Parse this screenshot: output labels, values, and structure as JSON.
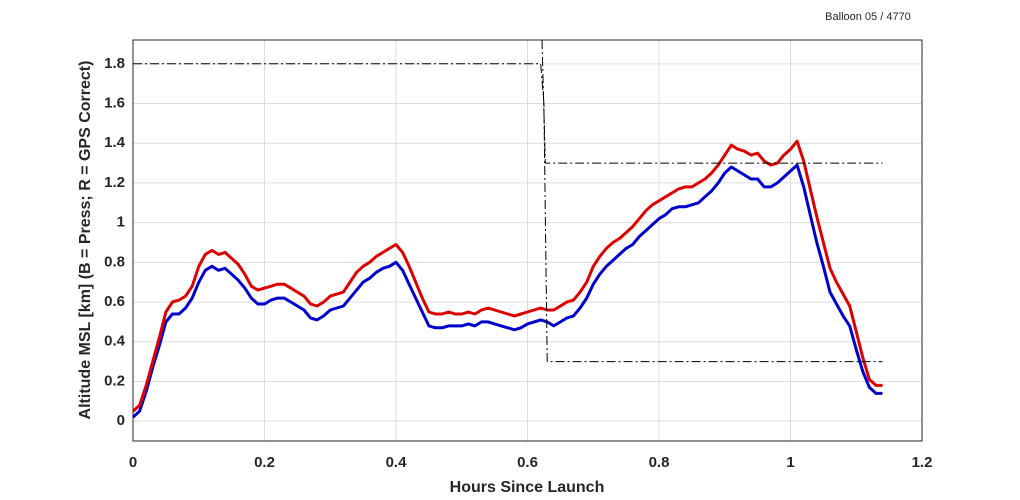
{
  "chart_data": {
    "type": "line",
    "title": "Balloon 05 / 4770",
    "x_label": "Hours Since Launch",
    "y_label": "Altitude MSL [km]   (B = Press; R = GPS Correct)",
    "xlim": [
      0,
      1.2
    ],
    "xticks": [
      0,
      0.2,
      0.4,
      0.6,
      0.8,
      1,
      1.2
    ],
    "ylim": [
      -0.1,
      1.92
    ],
    "yticks": [
      0,
      0.2,
      0.4,
      0.6,
      0.8,
      1,
      1.2,
      1.4,
      1.6,
      1.8
    ],
    "grid": true,
    "x": [
      0,
      0.01,
      0.02,
      0.03,
      0.04,
      0.05,
      0.06,
      0.07,
      0.08,
      0.09,
      0.1,
      0.11,
      0.12,
      0.13,
      0.14,
      0.15,
      0.16,
      0.17,
      0.18,
      0.19,
      0.2,
      0.21,
      0.22,
      0.23,
      0.24,
      0.25,
      0.26,
      0.27,
      0.28,
      0.29,
      0.3,
      0.31,
      0.32,
      0.33,
      0.34,
      0.35,
      0.36,
      0.37,
      0.38,
      0.39,
      0.4,
      0.41,
      0.42,
      0.43,
      0.44,
      0.45,
      0.46,
      0.47,
      0.48,
      0.49,
      0.5,
      0.51,
      0.52,
      0.53,
      0.54,
      0.55,
      0.56,
      0.57,
      0.58,
      0.59,
      0.6,
      0.61,
      0.62,
      0.63,
      0.64,
      0.65,
      0.66,
      0.67,
      0.68,
      0.69,
      0.7,
      0.71,
      0.72,
      0.73,
      0.74,
      0.75,
      0.76,
      0.77,
      0.78,
      0.79,
      0.8,
      0.81,
      0.82,
      0.83,
      0.84,
      0.85,
      0.86,
      0.87,
      0.88,
      0.89,
      0.9,
      0.91,
      0.92,
      0.93,
      0.94,
      0.95,
      0.96,
      0.97,
      0.98,
      0.99,
      1,
      1.01,
      1.02,
      1.03,
      1.04,
      1.05,
      1.06,
      1.07,
      1.08,
      1.09,
      1.1,
      1.11,
      1.12,
      1.13,
      1.14
    ],
    "series": [
      {
        "color": "#0000cc",
        "values": [
          0.02,
          0.05,
          0.15,
          0.27,
          0.38,
          0.5,
          0.54,
          0.54,
          0.57,
          0.62,
          0.7,
          0.76,
          0.78,
          0.76,
          0.77,
          0.74,
          0.71,
          0.67,
          0.62,
          0.59,
          0.59,
          0.61,
          0.62,
          0.62,
          0.6,
          0.58,
          0.56,
          0.52,
          0.51,
          0.53,
          0.56,
          0.57,
          0.58,
          0.62,
          0.66,
          0.7,
          0.72,
          0.75,
          0.77,
          0.78,
          0.8,
          0.76,
          0.69,
          0.62,
          0.55,
          0.48,
          0.47,
          0.47,
          0.48,
          0.48,
          0.48,
          0.49,
          0.48,
          0.5,
          0.5,
          0.49,
          0.48,
          0.47,
          0.46,
          0.47,
          0.49,
          0.5,
          0.51,
          0.5,
          0.48,
          0.5,
          0.52,
          0.53,
          0.57,
          0.62,
          0.69,
          0.74,
          0.78,
          0.81,
          0.84,
          0.87,
          0.89,
          0.93,
          0.96,
          0.99,
          1.02,
          1.04,
          1.07,
          1.08,
          1.08,
          1.09,
          1.1,
          1.13,
          1.16,
          1.2,
          1.25,
          1.28,
          1.26,
          1.24,
          1.22,
          1.22,
          1.18,
          1.18,
          1.2,
          1.23,
          1.26,
          1.29,
          1.18,
          1.04,
          0.9,
          0.78,
          0.65,
          0.59,
          0.53,
          0.48,
          0.36,
          0.25,
          0.17,
          0.14,
          0.14
        ]
      },
      {
        "color": "#dd0000",
        "values": [
          0.05,
          0.08,
          0.18,
          0.3,
          0.42,
          0.55,
          0.6,
          0.61,
          0.63,
          0.68,
          0.78,
          0.84,
          0.86,
          0.84,
          0.85,
          0.82,
          0.79,
          0.74,
          0.68,
          0.66,
          0.67,
          0.68,
          0.69,
          0.69,
          0.67,
          0.65,
          0.63,
          0.59,
          0.58,
          0.6,
          0.63,
          0.64,
          0.65,
          0.7,
          0.75,
          0.78,
          0.8,
          0.83,
          0.85,
          0.87,
          0.89,
          0.85,
          0.78,
          0.7,
          0.62,
          0.55,
          0.54,
          0.54,
          0.55,
          0.54,
          0.54,
          0.55,
          0.54,
          0.56,
          0.57,
          0.56,
          0.55,
          0.54,
          0.53,
          0.54,
          0.55,
          0.56,
          0.57,
          0.56,
          0.56,
          0.58,
          0.6,
          0.61,
          0.65,
          0.7,
          0.78,
          0.83,
          0.87,
          0.9,
          0.92,
          0.95,
          0.98,
          1.02,
          1.06,
          1.09,
          1.11,
          1.13,
          1.15,
          1.17,
          1.18,
          1.18,
          1.2,
          1.22,
          1.25,
          1.29,
          1.34,
          1.39,
          1.37,
          1.36,
          1.34,
          1.35,
          1.31,
          1.29,
          1.3,
          1.34,
          1.37,
          1.41,
          1.31,
          1.17,
          1.03,
          0.9,
          0.77,
          0.7,
          0.64,
          0.58,
          0.45,
          0.32,
          0.21,
          0.18,
          0.18
        ]
      },
      {
        "color": "#000000",
        "dash": true,
        "x": [
          0,
          0.62,
          0.625,
          0.63,
          1.14
        ],
        "values": [
          1.8,
          1.8,
          1.6,
          0.3,
          0.3
        ]
      },
      {
        "color": "#000000",
        "dash": true,
        "x": [
          0.622,
          0.627,
          0.632,
          1.14
        ],
        "values": [
          1.92,
          1.3,
          1.3,
          1.3
        ]
      }
    ]
  }
}
